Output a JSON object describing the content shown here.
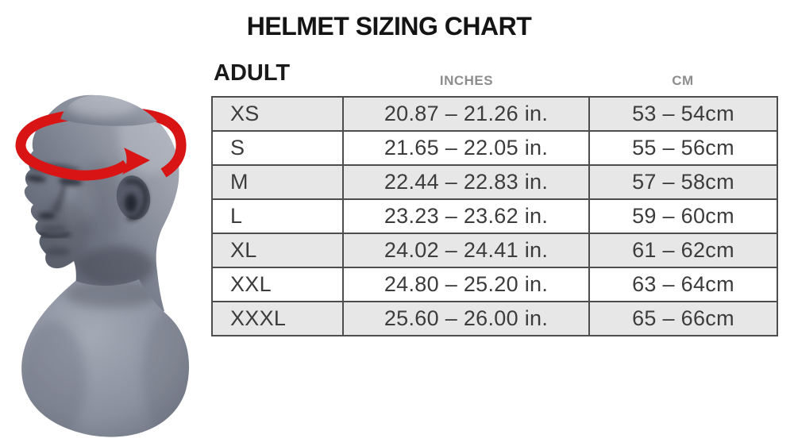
{
  "title": "HELMET SIZING CHART",
  "sizing_table": {
    "group_label": "ADULT",
    "col_inches": "INCHES",
    "col_cm": "CM",
    "rows": [
      {
        "size": "XS",
        "inches": "20.87 – 21.26 in.",
        "cm": "53 – 54cm"
      },
      {
        "size": "S",
        "inches": "21.65 – 22.05 in.",
        "cm": "55 – 56cm"
      },
      {
        "size": "M",
        "inches": "22.44 – 22.83 in.",
        "cm": "57 – 58cm"
      },
      {
        "size": "L",
        "inches": "23.23 – 23.62 in.",
        "cm": "59 – 60cm"
      },
      {
        "size": "XL",
        "inches": "24.02 – 24.41 in.",
        "cm": "61 – 62cm"
      },
      {
        "size": "XXL",
        "inches": "24.80 – 25.20 in.",
        "cm": "63 – 64cm"
      },
      {
        "size": "XXXL",
        "inches": "25.60 – 26.00 in.",
        "cm": "65 – 66cm"
      }
    ]
  },
  "chart_data": {
    "type": "table",
    "title": "HELMET SIZING CHART",
    "group": "ADULT",
    "columns": [
      "",
      "INCHES",
      "CM"
    ],
    "rows": [
      [
        "XS",
        "20.87 – 21.26 in.",
        "53 – 54cm"
      ],
      [
        "S",
        "21.65 – 22.05 in.",
        "55 – 56cm"
      ],
      [
        "M",
        "22.44 – 22.83 in.",
        "57 – 58cm"
      ],
      [
        "L",
        "23.23 – 23.62 in.",
        "59 – 60cm"
      ],
      [
        "XL",
        "24.02 – 24.41 in.",
        "61 – 62cm"
      ],
      [
        "XXL",
        "24.80 – 25.20 in.",
        "63 – 64cm"
      ],
      [
        "XXXL",
        "25.60 – 26.00 in.",
        "65 – 66cm"
      ]
    ]
  },
  "illustration": {
    "name": "mannequin-head-with-circumference-arrow",
    "arrow_color": "#d81414",
    "head_color": "#7d8290"
  },
  "colors": {
    "row_shaded": "#e7e7e7",
    "row_plain": "#ffffff",
    "table_border": "#4d4d4d",
    "header_text": "#8d8d8d",
    "cell_text": "#3c3c3c",
    "title_text": "#141414"
  }
}
